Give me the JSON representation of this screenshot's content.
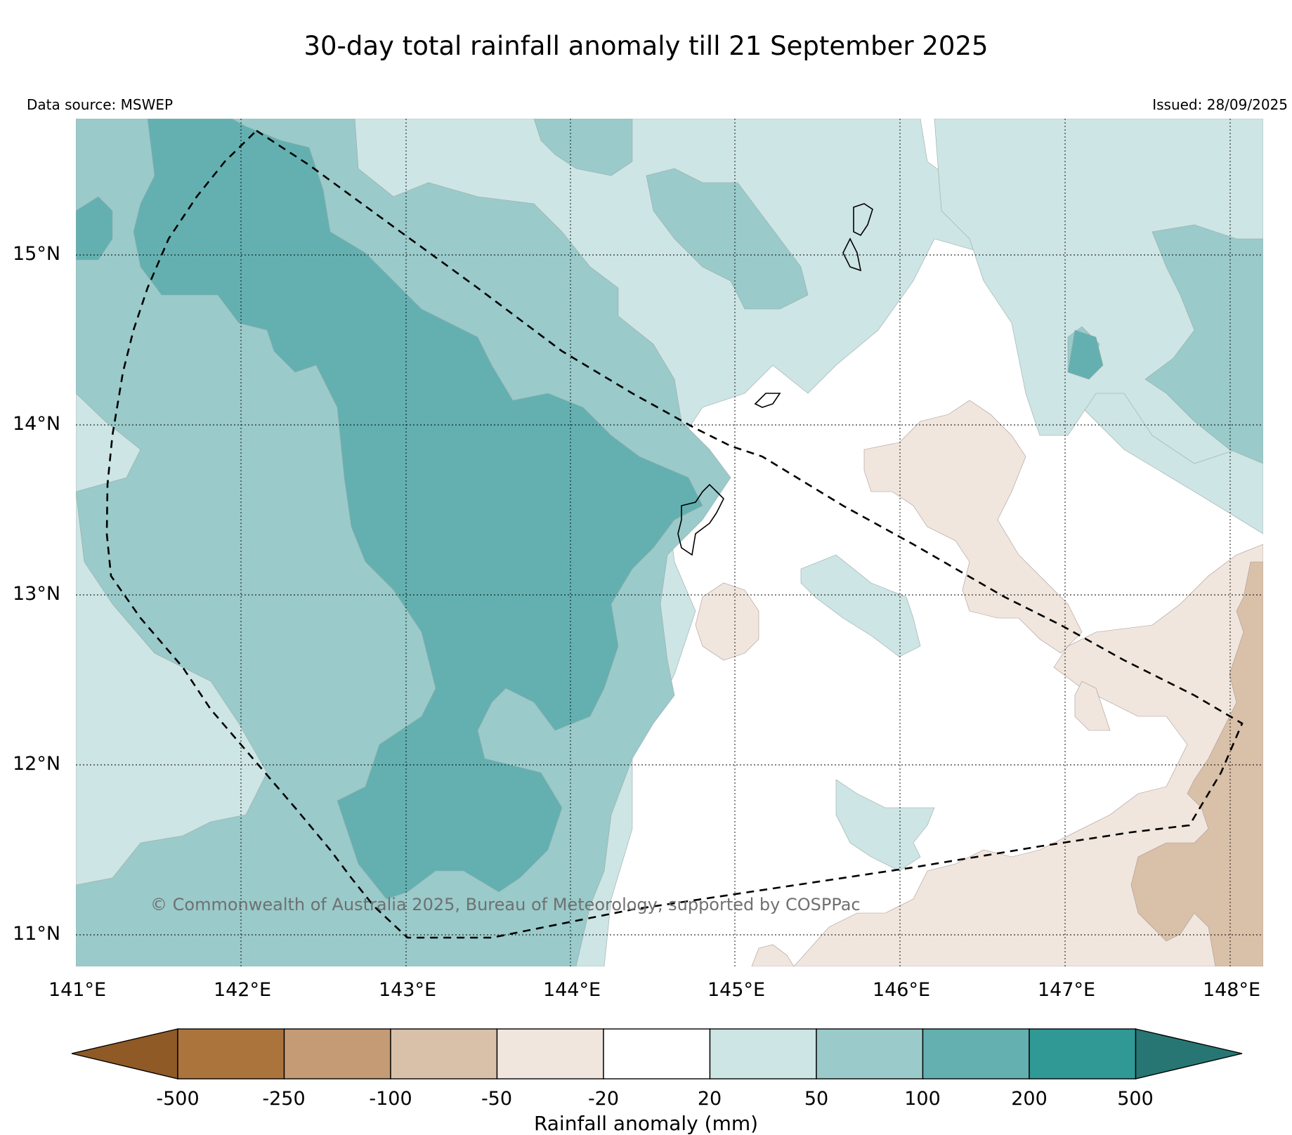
{
  "header": {
    "title": "30-day total rainfall anomaly till 21 September 2025",
    "data_source": "Data source: MSWEP",
    "issued": "Issued: 28/09/2025"
  },
  "map": {
    "lat_labels": [
      "15°N",
      "14°N",
      "13°N",
      "12°N",
      "11°N"
    ],
    "lon_labels": [
      "141°E",
      "142°E",
      "143°E",
      "144°E",
      "145°E",
      "146°E",
      "147°E",
      "148°E"
    ],
    "copyright": "© Commonwealth of Australia 2025, Bureau of Meteorology, supported by COSPPac",
    "extent": {
      "lon_min": 141.0,
      "lon_max": 148.2,
      "lat_min": 10.8,
      "lat_max": 15.8
    }
  },
  "colorbar": {
    "title": "Rainfall anomaly (mm)",
    "ticks": [
      "-500",
      "-250",
      "-100",
      "-50",
      "-20",
      "20",
      "50",
      "100",
      "200",
      "500"
    ],
    "colors": {
      "below_min": "#8f5a26",
      "c1": "#ab743d",
      "c2": "#c49b74",
      "c3": "#d9c0a9",
      "c4": "#f0e6dd",
      "c5": "#ffffff",
      "c6": "#cde5e4",
      "c7": "#9acaca",
      "c8": "#64b0b1",
      "c9": "#309996",
      "above_max": "#277673"
    }
  }
}
